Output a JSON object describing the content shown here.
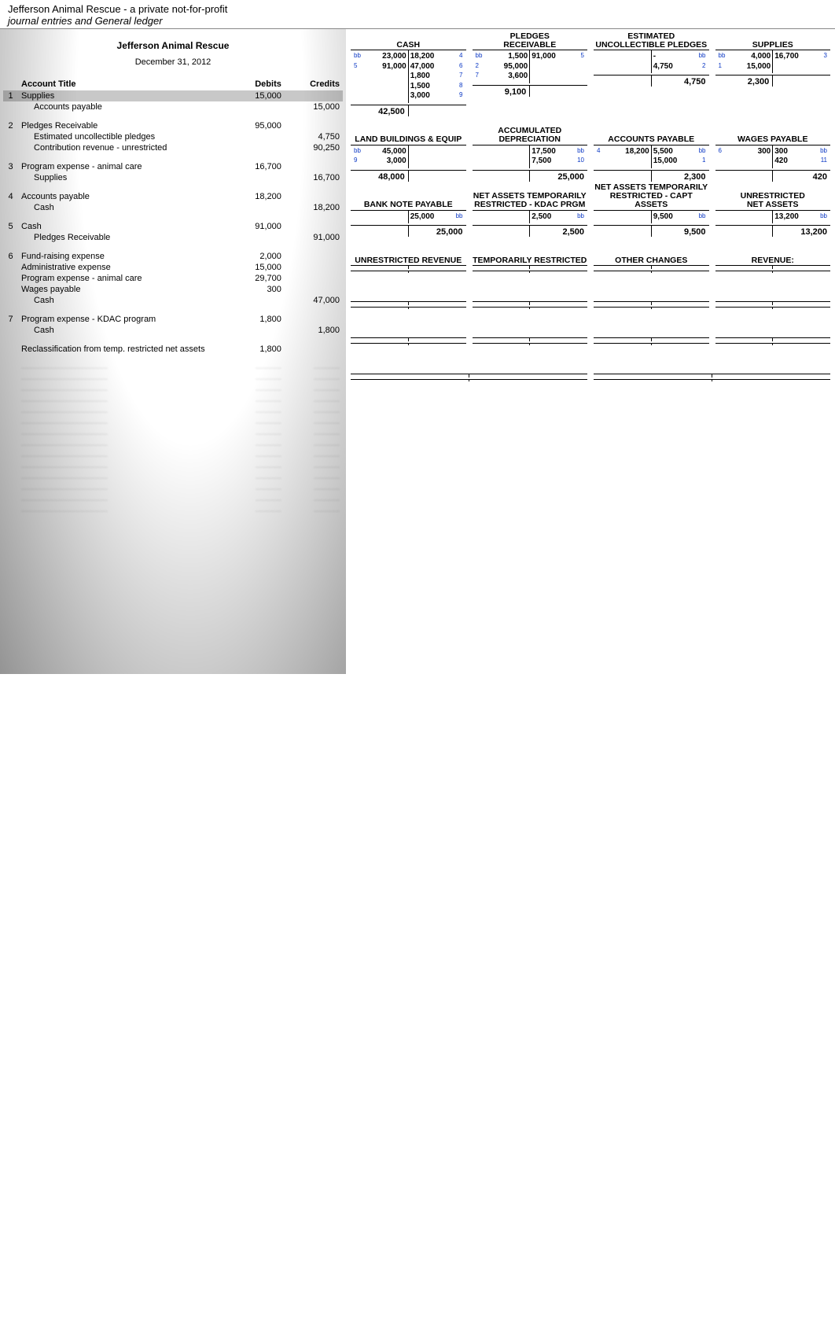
{
  "header": {
    "title": "Jefferson Animal Rescue - a private not-for-profit",
    "subtitle": "journal entries and General ledger"
  },
  "journal": {
    "org": "Jefferson Animal Rescue",
    "date": "December 31, 2012",
    "cols": {
      "acct": "Account Title",
      "dr": "Debits",
      "cr": "Credits"
    },
    "entries": [
      {
        "idx": "1",
        "lines": [
          {
            "acct": "Supplies",
            "dr": "15,000",
            "cr": "",
            "hi": true
          },
          {
            "acct": "Accounts payable",
            "indent": true,
            "dr": "",
            "cr": "15,000"
          }
        ]
      },
      {
        "idx": "2",
        "lines": [
          {
            "acct": "Pledges Receivable",
            "dr": "95,000",
            "cr": ""
          },
          {
            "acct": "Estimated uncollectible pledges",
            "indent": true,
            "dr": "",
            "cr": "4,750"
          },
          {
            "acct": "Contribution revenue - unrestricted",
            "indent": true,
            "dr": "",
            "cr": "90,250"
          }
        ]
      },
      {
        "idx": "3",
        "lines": [
          {
            "acct": "Program expense - animal care",
            "dr": "16,700",
            "cr": ""
          },
          {
            "acct": "Supplies",
            "indent": true,
            "dr": "",
            "cr": "16,700"
          }
        ]
      },
      {
        "idx": "4",
        "lines": [
          {
            "acct": "Accounts payable",
            "dr": "18,200",
            "cr": ""
          },
          {
            "acct": "Cash",
            "indent": true,
            "dr": "",
            "cr": "18,200"
          }
        ]
      },
      {
        "idx": "5",
        "lines": [
          {
            "acct": "Cash",
            "dr": "91,000",
            "cr": ""
          },
          {
            "acct": "Pledges Receivable",
            "indent": true,
            "dr": "",
            "cr": "91,000"
          }
        ]
      },
      {
        "idx": "6",
        "lines": [
          {
            "acct": "Fund-raising expense",
            "dr": "2,000",
            "cr": ""
          },
          {
            "acct": "Administrative expense",
            "dr": "15,000",
            "cr": ""
          },
          {
            "acct": "Program expense - animal care",
            "dr": "29,700",
            "cr": ""
          },
          {
            "acct": "Wages payable",
            "dr": "300",
            "cr": ""
          },
          {
            "acct": "Cash",
            "indent": true,
            "dr": "",
            "cr": "47,000"
          }
        ]
      },
      {
        "idx": "7",
        "lines": [
          {
            "acct": "Program expense - KDAC program",
            "dr": "1,800",
            "cr": ""
          },
          {
            "acct": "Cash",
            "indent": true,
            "dr": "",
            "cr": "1,800"
          }
        ]
      },
      {
        "idx": "",
        "lines": [
          {
            "acct": "Reclassification from temp. restricted net assets",
            "dr": "1,800",
            "cr": ""
          }
        ]
      }
    ]
  },
  "ledger": {
    "rows": [
      [
        {
          "title": "CASH",
          "left": [
            {
              "ref": "bb",
              "amt": "23,000"
            },
            {
              "ref": "5",
              "amt": "91,000"
            }
          ],
          "right": [
            {
              "ref": "4",
              "amt": "18,200"
            },
            {
              "ref": "6",
              "amt": "47,000"
            },
            {
              "ref": "7",
              "amt": "1,800"
            },
            {
              "ref": "8",
              "amt": "1,500"
            },
            {
              "ref": "9",
              "amt": "3,000"
            }
          ],
          "bal_left": "42,500",
          "bal_right": ""
        },
        {
          "title": "PLEDGES\nRECEIVABLE",
          "left": [
            {
              "ref": "bb",
              "amt": "1,500"
            },
            {
              "ref": "2",
              "amt": "95,000"
            },
            {
              "ref": "7",
              "amt": "3,600"
            }
          ],
          "right": [
            {
              "ref": "5",
              "amt": "91,000"
            }
          ],
          "bal_left": "9,100",
          "bal_right": ""
        },
        {
          "title": "ESTIMATED\nUNCOLLECTIBLE PLEDGES",
          "left": [
            {
              "ref": "",
              "amt": ""
            }
          ],
          "right": [
            {
              "ref": "bb",
              "amt": "-"
            },
            {
              "ref": "2",
              "amt": "4,750"
            }
          ],
          "bal_left": "",
          "bal_right": "4,750"
        },
        {
          "title": "SUPPLIES",
          "left": [
            {
              "ref": "bb",
              "amt": "4,000"
            },
            {
              "ref": "1",
              "amt": "15,000"
            }
          ],
          "right": [
            {
              "ref": "3",
              "amt": "16,700"
            }
          ],
          "bal_left": "2,300",
          "bal_right": ""
        }
      ],
      [
        {
          "title": "LAND BUILDINGS & EQUIP",
          "left": [
            {
              "ref": "bb",
              "amt": "45,000"
            },
            {
              "ref": "9",
              "amt": "3,000"
            }
          ],
          "right": [],
          "bal_left": "48,000",
          "bal_right": ""
        },
        {
          "title": "ACCUMULATED\nDEPRECIATION",
          "left": [],
          "right": [
            {
              "ref": "bb",
              "amt": "17,500"
            },
            {
              "ref": "10",
              "amt": "7,500"
            }
          ],
          "bal_left": "",
          "bal_right": "25,000"
        },
        {
          "title": "ACCOUNTS PAYABLE",
          "left": [
            {
              "ref": "4",
              "amt": "18,200"
            }
          ],
          "right": [
            {
              "ref": "bb",
              "amt": "5,500"
            },
            {
              "ref": "1",
              "amt": "15,000"
            }
          ],
          "bal_left": "",
          "bal_right": "2,300"
        },
        {
          "title": "WAGES PAYABLE",
          "left": [
            {
              "ref": "6",
              "amt": "300"
            }
          ],
          "right": [
            {
              "ref": "bb",
              "amt": "300"
            },
            {
              "ref": "11",
              "amt": "420"
            }
          ],
          "bal_left": "",
          "bal_right": "420"
        }
      ],
      [
        {
          "title": "BANK NOTE PAYABLE",
          "left": [],
          "right": [
            {
              "ref": "bb",
              "amt": "25,000"
            }
          ],
          "bal_left": "",
          "bal_right": "25,000"
        },
        {
          "title": "NET ASSETS TEMPORARILY\nRESTRICTED - KDAC PRGM",
          "left": [],
          "right": [
            {
              "ref": "bb",
              "amt": "2,500"
            }
          ],
          "bal_left": "",
          "bal_right": "2,500"
        },
        {
          "title": "NET ASSETS TEMPORARILY\nRESTRICTED - CAPT ASSETS",
          "left": [],
          "right": [
            {
              "ref": "bb",
              "amt": "9,500"
            }
          ],
          "bal_left": "",
          "bal_right": "9,500"
        },
        {
          "title": "UNRESTRICTED\nNET ASSETS",
          "left": [],
          "right": [
            {
              "ref": "bb",
              "amt": "13,200"
            }
          ],
          "bal_left": "",
          "bal_right": "13,200"
        }
      ],
      [
        {
          "title": "UNRESTRICTED REVENUE",
          "left": [
            {
              "ref": "",
              "amt": ""
            }
          ],
          "right": [
            {
              "ref": "",
              "amt": ""
            }
          ],
          "bal_left": "",
          "bal_right": ""
        },
        {
          "title": "TEMPORARILY RESTRICTED",
          "left": [
            {
              "ref": "",
              "amt": ""
            }
          ],
          "right": [
            {
              "ref": "",
              "amt": ""
            }
          ],
          "bal_left": "",
          "bal_right": ""
        },
        {
          "title": "OTHER CHANGES",
          "left": [
            {
              "ref": "",
              "amt": ""
            }
          ],
          "right": [
            {
              "ref": "",
              "amt": ""
            }
          ],
          "bal_left": "",
          "bal_right": ""
        },
        {
          "title": "REVENUE:",
          "left": [
            {
              "ref": "",
              "amt": ""
            }
          ],
          "right": [
            {
              "ref": "",
              "amt": ""
            }
          ],
          "bal_left": "",
          "bal_right": ""
        }
      ],
      [
        {
          "title": "",
          "left": [
            {
              "ref": "",
              "amt": ""
            }
          ],
          "right": [
            {
              "ref": "",
              "amt": ""
            }
          ],
          "bal_left": "",
          "bal_right": ""
        },
        {
          "title": "",
          "left": [
            {
              "ref": "",
              "amt": ""
            }
          ],
          "right": [
            {
              "ref": "",
              "amt": ""
            }
          ],
          "bal_left": "",
          "bal_right": ""
        },
        {
          "title": "",
          "left": [
            {
              "ref": "",
              "amt": ""
            }
          ],
          "right": [
            {
              "ref": "",
              "amt": ""
            }
          ],
          "bal_left": "",
          "bal_right": ""
        },
        {
          "title": "",
          "left": [
            {
              "ref": "",
              "amt": ""
            }
          ],
          "right": [
            {
              "ref": "",
              "amt": ""
            }
          ],
          "bal_left": "",
          "bal_right": ""
        }
      ],
      [
        {
          "title": "",
          "left": [
            {
              "ref": "",
              "amt": ""
            }
          ],
          "right": [
            {
              "ref": "",
              "amt": ""
            }
          ],
          "bal_left": "",
          "bal_right": ""
        },
        {
          "title": "",
          "left": [
            {
              "ref": "",
              "amt": ""
            }
          ],
          "right": [
            {
              "ref": "",
              "amt": ""
            }
          ],
          "bal_left": "",
          "bal_right": ""
        },
        {
          "title": "",
          "left": [
            {
              "ref": "",
              "amt": ""
            }
          ],
          "right": [
            {
              "ref": "",
              "amt": ""
            }
          ],
          "bal_left": "",
          "bal_right": ""
        },
        {
          "title": "",
          "left": [
            {
              "ref": "",
              "amt": ""
            }
          ],
          "right": [
            {
              "ref": "",
              "amt": ""
            }
          ],
          "bal_left": "",
          "bal_right": ""
        }
      ],
      [
        {
          "title": "",
          "left": [
            {
              "ref": "",
              "amt": ""
            }
          ],
          "right": [
            {
              "ref": "",
              "amt": ""
            }
          ],
          "bal_left": "",
          "bal_right": ""
        },
        {
          "title": "",
          "left": [
            {
              "ref": "",
              "amt": ""
            }
          ],
          "right": [
            {
              "ref": "",
              "amt": ""
            }
          ],
          "bal_left": "",
          "bal_right": ""
        }
      ]
    ]
  },
  "colors": {
    "ref": "#0a37c4",
    "hi_bg": "#c8c8c8"
  }
}
